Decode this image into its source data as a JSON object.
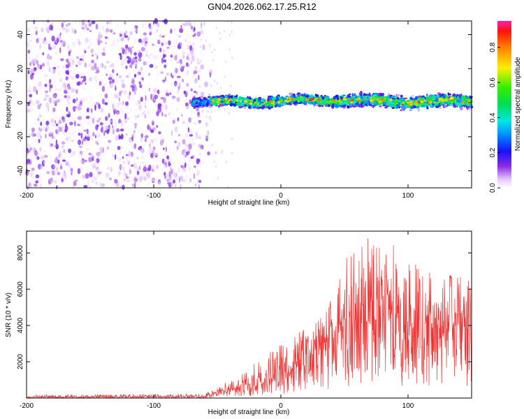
{
  "title": "GN04.2026.062.17.25.R12",
  "chart_data": [
    {
      "type": "heatmap",
      "name": "spectrogram",
      "xlabel": "Height of straight line (km)",
      "ylabel": "Frequency (Hz)",
      "xlim": [
        -200,
        150
      ],
      "ylim": [
        -50,
        48
      ],
      "x_ticks": [
        -200,
        -100,
        0,
        100
      ],
      "y_ticks": [
        -40,
        -20,
        0,
        20,
        40
      ],
      "colorbar": {
        "label": "Normalized spectral amplitude",
        "range": [
          0.0,
          0.95
        ],
        "ticks": [
          0.0,
          0.2,
          0.4,
          0.6,
          0.8
        ],
        "tick_labels": [
          "0.0",
          "0.2",
          "0.4",
          "0.6",
          "0.8"
        ]
      },
      "regions": [
        {
          "description": "broadband noise",
          "x_from": -200,
          "x_to": -63,
          "freq_from": -50,
          "freq_to": 48,
          "amplitude": 0.1
        },
        {
          "description": "signal band",
          "x_from": -70,
          "x_to": 150,
          "center_freq": 1,
          "half_width": 4,
          "peak_amplitude": 0.9
        }
      ]
    },
    {
      "type": "line",
      "name": "snr",
      "xlabel": "Height of straight line (km)",
      "ylabel": "SNR (10 * v/v)",
      "xlim": [
        -200,
        150
      ],
      "ylim": [
        0,
        9200
      ],
      "x_ticks": [
        -200,
        -100,
        0,
        100
      ],
      "y_ticks": [
        2000,
        4000,
        6000,
        8000
      ],
      "color": "#ee3333",
      "envelope": {
        "x": [
          -200,
          -150,
          -100,
          -60,
          -50,
          -40,
          -30,
          -20,
          -10,
          0,
          10,
          20,
          30,
          40,
          50,
          60,
          70,
          80,
          90,
          100,
          110,
          120,
          130,
          140,
          150
        ],
        "mean": [
          50,
          60,
          70,
          80,
          300,
          500,
          700,
          800,
          1000,
          1300,
          1600,
          2000,
          2700,
          3500,
          4200,
          4400,
          4500,
          4400,
          4300,
          4200,
          4200,
          4100,
          4100,
          4000,
          4100
        ],
        "peak": [
          180,
          200,
          230,
          250,
          600,
          1000,
          1500,
          2000,
          2500,
          3000,
          3400,
          3900,
          4600,
          5500,
          7600,
          8600,
          9100,
          8500,
          8400,
          7600,
          7200,
          6900,
          6900,
          6700,
          6800
        ]
      }
    }
  ]
}
